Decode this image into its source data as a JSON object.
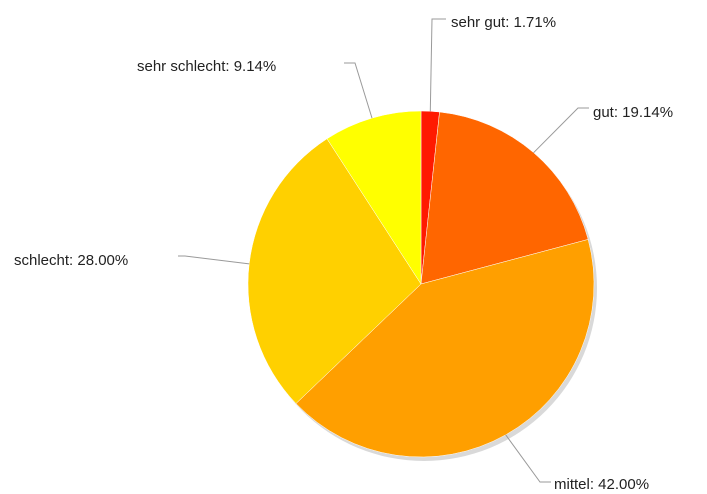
{
  "chart_data": {
    "type": "pie",
    "title": "",
    "slices": [
      {
        "label": "sehr gut",
        "value": 1.71,
        "display": "sehr gut: 1.71%",
        "color": "#ff1a00"
      },
      {
        "label": "gut",
        "value": 19.14,
        "display": "gut: 19.14%",
        "color": "#ff6600"
      },
      {
        "label": "mittel",
        "value": 42.0,
        "display": "mittel: 42.00%",
        "color": "#ff9f00"
      },
      {
        "label": "schlecht",
        "value": 28.0,
        "display": "schlecht: 28.00%",
        "color": "#ffd000"
      },
      {
        "label": "sehr schlecht",
        "value": 9.14,
        "display": "sehr schlecht: 9.14%",
        "color": "#ffff00"
      }
    ],
    "start": "12 o'clock",
    "direction": "clockwise",
    "legend": "none (labels with leader lines)"
  }
}
